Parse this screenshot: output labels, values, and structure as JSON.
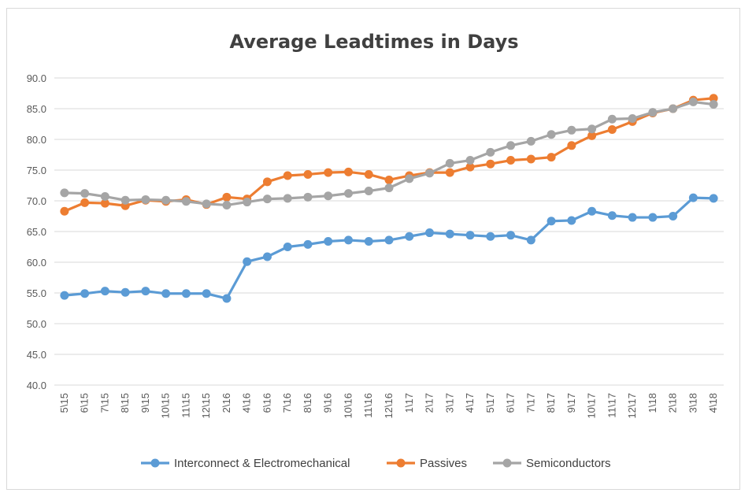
{
  "chart_data": {
    "type": "line",
    "title": "Average Leadtimes in Days",
    "xlabel": "",
    "ylabel": "",
    "ylim": [
      40,
      90
    ],
    "yticks": [
      "40.0",
      "45.0",
      "50.0",
      "55.0",
      "60.0",
      "65.0",
      "70.0",
      "75.0",
      "80.0",
      "85.0",
      "90.0"
    ],
    "grid": true,
    "legend_position": "bottom",
    "categories": [
      "5\\15",
      "6\\15",
      "7\\15",
      "8\\15",
      "9\\15",
      "10\\15",
      "11\\15",
      "12\\15",
      "2\\16",
      "4\\16",
      "6\\16",
      "7\\16",
      "8\\16",
      "9\\16",
      "10\\16",
      "11\\16",
      "12\\16",
      "1\\17",
      "2\\17",
      "3\\17",
      "4\\17",
      "5\\17",
      "6\\17",
      "7\\17",
      "8\\17",
      "9\\17",
      "10\\17",
      "11\\17",
      "12\\17",
      "1\\18",
      "2\\18",
      "3\\18",
      "4\\18"
    ],
    "series": [
      {
        "name": "Interconnect & Electromechanical",
        "color": "#5b9bd5",
        "values": [
          54.6,
          54.9,
          55.3,
          55.1,
          55.3,
          54.9,
          54.9,
          54.9,
          54.1,
          60.1,
          60.9,
          62.5,
          62.9,
          63.4,
          63.6,
          63.4,
          63.6,
          64.2,
          64.8,
          64.6,
          64.4,
          64.2,
          64.4,
          63.6,
          66.7,
          66.8,
          68.3,
          67.6,
          67.3,
          67.3,
          67.5,
          70.5,
          70.4
        ]
      },
      {
        "name": "Passives",
        "color": "#ed7d31",
        "values": [
          68.3,
          69.7,
          69.6,
          69.2,
          70.1,
          69.9,
          70.2,
          69.4,
          70.6,
          70.3,
          73.1,
          74.1,
          74.3,
          74.6,
          74.7,
          74.3,
          73.4,
          74.1,
          74.6,
          74.6,
          75.5,
          76.0,
          76.6,
          76.8,
          77.1,
          79.0,
          80.6,
          81.6,
          82.9,
          84.3,
          85.0,
          86.4,
          86.7
        ]
      },
      {
        "name": "Semiconductors",
        "color": "#a5a5a5",
        "values": [
          71.3,
          71.2,
          70.7,
          70.1,
          70.2,
          70.1,
          69.9,
          69.5,
          69.3,
          69.8,
          70.3,
          70.4,
          70.6,
          70.8,
          71.2,
          71.6,
          72.1,
          73.6,
          74.5,
          76.1,
          76.6,
          77.9,
          79.0,
          79.7,
          80.8,
          81.5,
          81.7,
          83.3,
          83.4,
          84.4,
          85.0,
          86.1,
          85.7
        ]
      }
    ]
  }
}
